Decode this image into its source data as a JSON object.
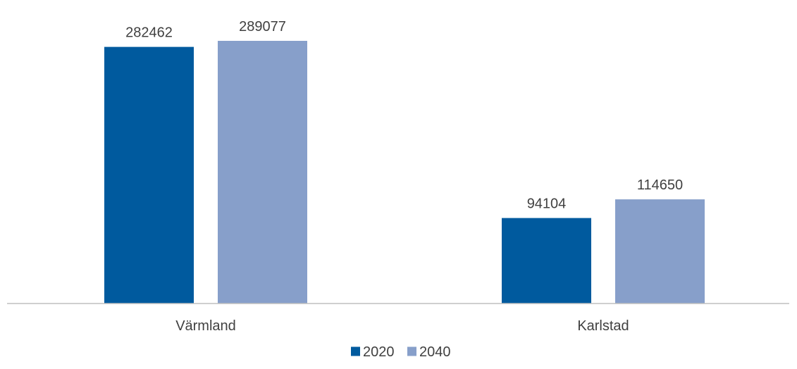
{
  "chart_data": {
    "type": "bar",
    "categories": [
      "Värmland",
      "Karlstad"
    ],
    "series": [
      {
        "name": "2020",
        "values": [
          282462,
          94104
        ],
        "color": "#005A9E"
      },
      {
        "name": "2040",
        "values": [
          289077,
          114650
        ],
        "color": "#879FCA"
      }
    ],
    "ylim": [
      0,
      300000
    ],
    "grid": false,
    "legend_position": "bottom",
    "axis_color": "#BFBFBF",
    "label_color": "#404040"
  }
}
